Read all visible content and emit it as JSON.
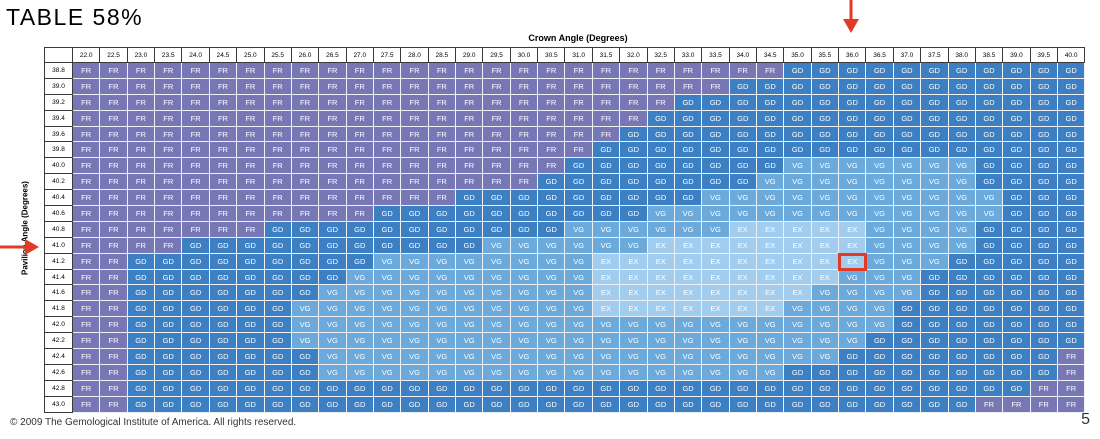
{
  "title": "TABLE 58%",
  "crown_axis_label": "Crown Angle (Degrees)",
  "pavilion_axis_label": "Pavilion Angle (Degrees)",
  "crown_angles": [
    "22.0",
    "22.5",
    "23.0",
    "23.5",
    "24.0",
    "24.5",
    "25.0",
    "25.5",
    "26.0",
    "26.5",
    "27.0",
    "27.5",
    "28.0",
    "28.5",
    "29.0",
    "29.5",
    "30.0",
    "30.5",
    "31.0",
    "31.5",
    "32.0",
    "32.5",
    "33.0",
    "33.5",
    "34.0",
    "34.5",
    "35.0",
    "35.5",
    "36.0",
    "36.5",
    "37.0",
    "37.5",
    "38.0",
    "38.5",
    "39.0",
    "39.5",
    "40.0"
  ],
  "pavilion_angles": [
    "38.8",
    "39.0",
    "39.2",
    "39.4",
    "39.6",
    "39.8",
    "40.0",
    "40.2",
    "40.4",
    "40.6",
    "40.8",
    "41.0",
    "41.2",
    "41.4",
    "41.6",
    "41.8",
    "42.0",
    "42.2",
    "42.4",
    "42.6",
    "42.8",
    "43.0"
  ],
  "grades": [
    "FR FR FR FR FR FR FR FR FR FR FR FR FR FR FR FR FR FR FR FR FR FR FR FR FR FR GD GD GD GD GD GD GD GD GD GD GD",
    "FR FR FR FR FR FR FR FR FR FR FR FR FR FR FR FR FR FR FR FR FR FR FR FR GD GD GD GD GD GD GD GD GD GD GD GD GD",
    "FR FR FR FR FR FR FR FR FR FR FR FR FR FR FR FR FR FR FR FR FR FR GD GD GD GD GD GD GD GD GD GD GD GD GD GD GD",
    "FR FR FR FR FR FR FR FR FR FR FR FR FR FR FR FR FR FR FR FR FR GD GD GD GD GD GD GD GD GD GD GD GD GD GD GD GD",
    "FR FR FR FR FR FR FR FR FR FR FR FR FR FR FR FR FR FR FR FR GD GD GD GD GD GD GD GD GD GD GD GD GD GD GD GD GD",
    "FR FR FR FR FR FR FR FR FR FR FR FR FR FR FR FR FR FR FR GD GD GD GD GD GD GD GD GD GD GD GD GD GD GD GD GD GD",
    "FR FR FR FR FR FR FR FR FR FR FR FR FR FR FR FR FR FR GD GD GD GD GD GD GD GD VG VG VG VG VG VG VG GD GD GD GD",
    "FR FR FR FR FR FR FR FR FR FR FR FR FR FR FR FR FR GD GD GD GD GD GD GD GD VG VG VG VG VG VG VG VG GD GD GD GD",
    "FR FR FR FR FR FR FR FR FR FR FR FR FR FR GD GD GD GD GD GD GD GD GD VG VG VG VG VG VG VG VG VG VG VG GD GD GD",
    "FR FR FR FR FR FR FR FR FR FR FR GD GD GD GD GD GD GD GD GD GD VG VG VG VG VG VG VG VG VG VG VG VG VG GD GD GD",
    "FR FR FR FR FR FR FR GD GD GD GD GD GD GD GD GD GD GD VG VG VG VG VG VG EX EX EX EX EX VG VG VG VG GD GD GD GD",
    "FR FR FR FR GD GD GD GD GD GD GD GD GD GD GD VG VG VG VG VG VG EX EX EX EX EX EX EX EX VG VG VG VG GD GD GD GD",
    "FR FR GD GD GD GD GD GD GD GD GD VG VG VG VG VG VG VG VG EX EX EX EX EX EX EX EX EX EX VG VG VG GD GD GD GD GD",
    "FR FR GD GD GD GD GD GD GD GD VG VG VG VG VG VG VG VG VG EX EX EX EX EX EX EX EX EX VG VG VG GD GD GD GD GD GD",
    "FR FR GD GD GD GD GD GD GD VG VG VG VG VG VG VG VG VG VG EX EX EX EX EX EX EX EX VG VG VG VG GD GD GD GD GD GD",
    "FR FR GD GD GD GD GD GD VG VG VG VG VG VG VG VG VG VG VG EX EX EX EX EX EX EX VG VG VG VG GD GD GD GD GD GD GD",
    "FR FR GD GD GD GD GD GD VG VG VG VG VG VG VG VG VG VG VG VG VG VG VG VG VG VG VG VG VG VG GD GD GD GD GD GD GD",
    "FR FR GD GD GD GD GD GD VG VG VG VG VG VG VG VG VG VG VG VG VG VG VG VG VG VG VG VG VG GD GD GD GD GD GD GD GD",
    "FR FR GD GD GD GD GD GD GD VG VG VG VG VG VG VG VG VG VG VG VG VG VG VG VG VG VG VG GD GD GD GD GD GD GD GD FR",
    "FR FR GD GD GD GD GD GD GD VG VG VG VG VG VG VG VG VG VG VG VG VG VG VG VG VG GD GD GD GD GD GD GD GD GD GD FR",
    "FR FR GD GD GD GD GD GD GD GD GD GD GD GD GD GD GD GD GD GD GD GD GD GD GD GD GD GD GD GD GD GD GD GD GD FR FR",
    "FR FR GD GD GD GD GD GD GD GD GD GD GD GD GD GD GD GD GD GD GD GD GD GD GD GD GD GD GD GD GD GD GD FR FR FR FR"
  ],
  "highlight": {
    "pavilion": "41.2",
    "crown": "36.0"
  },
  "colors": {
    "FR": "#7877b6",
    "GD": "#3c7fc2",
    "VG": "#6caadb",
    "EX": "#a3cdee",
    "marker": "#e23b25"
  },
  "footer": "© 2009 The Gemological Institute of America. All rights reserved.",
  "page_number": "5"
}
